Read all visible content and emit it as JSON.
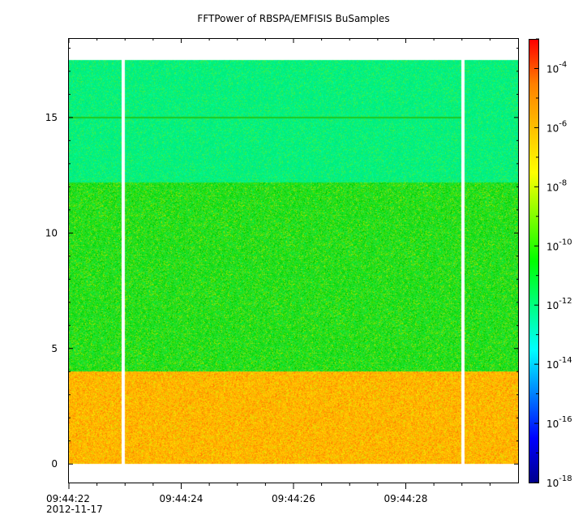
{
  "title": "FFTPower of RBSPA/EMFISIS  BuSamples",
  "date_label": "2012-11-17",
  "chart_data": {
    "type": "heatmap",
    "title": "FFTPower of RBSPA/EMFISIS  BuSamples",
    "xlabel": "",
    "ylabel": "",
    "x_range": [
      "2012-11-17T09:44:22.00",
      "2012-11-17T09:44:30.00"
    ],
    "x_tick_labels": [
      "09:44:22",
      "09:44:24",
      "09:44:26",
      "09:44:28"
    ],
    "x_tick_values_seconds": [
      22,
      24,
      26,
      28
    ],
    "x_minor_tick_values_seconds": [
      22.5,
      23,
      23.5,
      24.5,
      25,
      25.5,
      26.5,
      27,
      27.5,
      28.5,
      29,
      29.5
    ],
    "y_range": [
      -0.8,
      18.4
    ],
    "y_tick_values": [
      0,
      5,
      10,
      15
    ],
    "data_extent": {
      "x_seconds": [
        22.0,
        30.0
      ],
      "y": [
        0.0,
        17.5
      ]
    },
    "gaps_seconds": [
      22.95,
      29.0
    ],
    "bands": [
      {
        "y_from": 0.0,
        "y_to": 4.0,
        "log10_power": -7.6,
        "color": "#ffb400"
      },
      {
        "y_from": 4.0,
        "y_to": 12.2,
        "log10_power": -10.2,
        "color": "#22dd22"
      },
      {
        "y_from": 12.2,
        "y_to": 17.5,
        "log10_power": -12.0,
        "color": "#00f080"
      }
    ],
    "line_feature": {
      "y": 15.0,
      "log10_power": -10.5
    },
    "colorbar": {
      "scale": "log",
      "range": [
        1e-18,
        0.001
      ],
      "tick_exponents": [
        -18,
        -16,
        -14,
        -12,
        -10,
        -8,
        -6,
        -4
      ],
      "colormap": [
        "#00008c",
        "#0000ff",
        "#0080ff",
        "#00ffff",
        "#00ff80",
        "#00ff00",
        "#80ff00",
        "#ffff00",
        "#ffc000",
        "#ff8000",
        "#ff0000"
      ]
    }
  }
}
